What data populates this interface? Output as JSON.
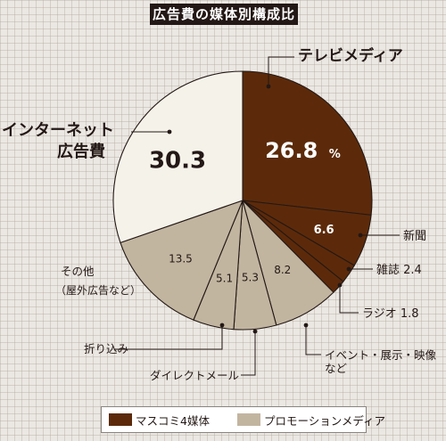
{
  "chart_data": {
    "type": "pie",
    "title": "広告費の媒体別構成比",
    "slices": [
      {
        "label": "テレビメディア",
        "value": 26.8,
        "value_text": "26.8",
        "unit": "%",
        "group": "マスコミ4媒体"
      },
      {
        "label": "新聞",
        "value": 6.6,
        "value_text": "6.6",
        "group": "マスコミ4媒体"
      },
      {
        "label": "雑誌",
        "value": 2.4,
        "value_text": "2.4",
        "group": "マスコミ4媒体"
      },
      {
        "label": "ラジオ",
        "value": 1.8,
        "value_text": "1.8",
        "group": "マスコミ4媒体"
      },
      {
        "label": "イベント・展示・映像など",
        "value": 8.2,
        "value_text": "8.2",
        "group": "プロモーションメディア"
      },
      {
        "label": "ダイレクトメール",
        "value": 5.3,
        "value_text": "5.3",
        "group": "プロモーションメディア"
      },
      {
        "label": "折り込み",
        "value": 5.1,
        "value_text": "5.1",
        "group": "プロモーションメディア"
      },
      {
        "label": "その他（屋外広告など）",
        "value": 13.5,
        "value_text": "13.5",
        "group": "プロモーションメディア"
      },
      {
        "label": "インターネット広告費",
        "value": 30.3,
        "value_text": "30.3",
        "group": null
      }
    ],
    "legend": [
      {
        "label": "マスコミ4媒体",
        "color": "#5c2a0a"
      },
      {
        "label": "プロモーションメディア",
        "color": "#c2b5a0"
      }
    ],
    "legend_position": "bottom"
  },
  "colors": {
    "mass_media": "#5c2a0a",
    "promotion": "#c2b5a0",
    "internet": "#f5f2ea",
    "edge": "#231815"
  }
}
